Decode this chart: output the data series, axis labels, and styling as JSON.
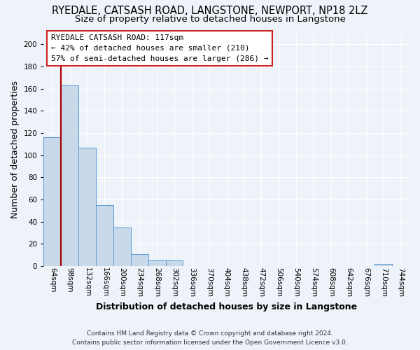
{
  "title": "RYEDALE, CATSASH ROAD, LANGSTONE, NEWPORT, NP18 2LZ",
  "subtitle": "Size of property relative to detached houses in Langstone",
  "xlabel": "Distribution of detached houses by size in Langstone",
  "ylabel": "Number of detached properties",
  "footer_line1": "Contains HM Land Registry data © Crown copyright and database right 2024.",
  "footer_line2": "Contains public sector information licensed under the Open Government Licence v3.0.",
  "bin_labels": [
    "64sqm",
    "98sqm",
    "132sqm",
    "166sqm",
    "200sqm",
    "234sqm",
    "268sqm",
    "302sqm",
    "336sqm",
    "370sqm",
    "404sqm",
    "438sqm",
    "472sqm",
    "506sqm",
    "540sqm",
    "574sqm",
    "608sqm",
    "642sqm",
    "676sqm",
    "710sqm",
    "744sqm"
  ],
  "bar_values": [
    116,
    163,
    107,
    55,
    35,
    11,
    5,
    5,
    0,
    0,
    0,
    0,
    0,
    0,
    0,
    0,
    0,
    0,
    0,
    2,
    0
  ],
  "bar_color": "#c8daea",
  "bar_edge_color": "#5b9bd5",
  "ylim": [
    0,
    210
  ],
  "yticks": [
    0,
    20,
    40,
    60,
    80,
    100,
    120,
    140,
    160,
    180,
    200
  ],
  "annotation_title": "RYEDALE CATSASH ROAD: 117sqm",
  "annotation_line1": "← 42% of detached houses are smaller (210)",
  "annotation_line2": "57% of semi-detached houses are larger (286) →",
  "background_color": "#eef3fa",
  "grid_color": "#ffffff",
  "title_fontsize": 10.5,
  "subtitle_fontsize": 9.5,
  "axis_label_fontsize": 9,
  "tick_fontsize": 7.5,
  "red_line_color": "#aa0000",
  "ann_fontsize": 8,
  "ann_edge_color": "#cc2222"
}
